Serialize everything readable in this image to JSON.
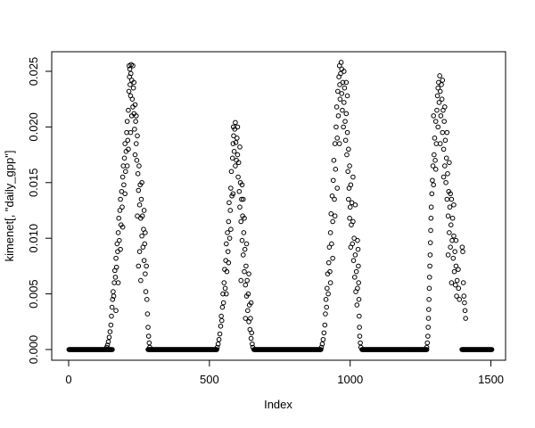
{
  "chart_data": {
    "type": "scatter",
    "title": "",
    "xlabel": "Index",
    "ylabel": "kimenet[, \"daily_gpp\"]",
    "legend": null,
    "grid": false,
    "marker": "open-circle",
    "point_color": "#000000",
    "box_color": "#000000",
    "background": "#ffffff",
    "xlim": [
      -60.2,
      1552.0
    ],
    "ylim": [
      -0.000962,
      0.02676
    ],
    "x_ticks": [
      0,
      500,
      1000,
      1500
    ],
    "x_tick_labels": [
      "0",
      "500",
      "1000",
      "1500"
    ],
    "y_ticks": [
      0.0,
      0.005,
      0.01,
      0.015,
      0.02,
      0.025
    ],
    "y_tick_labels": [
      "0.000",
      "0.005",
      "0.010",
      "0.015",
      "0.020",
      "0.025"
    ],
    "zero_runs": [
      [
        1,
        155
      ],
      [
        282,
        526
      ],
      [
        658,
        896
      ],
      [
        1042,
        1272
      ],
      [
        1397,
        1503
      ]
    ],
    "points": [
      [
        135,
        0.0002
      ],
      [
        138,
        0.0004
      ],
      [
        141,
        0.0007
      ],
      [
        144,
        0.0011
      ],
      [
        147,
        0.0016
      ],
      [
        150,
        0.0022
      ],
      [
        152,
        0.003
      ],
      [
        154,
        0.0038
      ],
      [
        156,
        0.0045
      ],
      [
        158,
        0.0052
      ],
      [
        160,
        0.0048
      ],
      [
        162,
        0.006
      ],
      [
        164,
        0.0071
      ],
      [
        166,
        0.0065
      ],
      [
        168,
        0.0082
      ],
      [
        168,
        0.0035
      ],
      [
        170,
        0.0074
      ],
      [
        172,
        0.0095
      ],
      [
        174,
        0.0088
      ],
      [
        176,
        0.0105
      ],
      [
        176,
        0.006
      ],
      [
        178,
        0.0118
      ],
      [
        180,
        0.0098
      ],
      [
        182,
        0.0125
      ],
      [
        184,
        0.0135
      ],
      [
        184,
        0.009
      ],
      [
        186,
        0.0112
      ],
      [
        188,
        0.0142
      ],
      [
        190,
        0.0128
      ],
      [
        192,
        0.0155
      ],
      [
        192,
        0.011
      ],
      [
        194,
        0.0165
      ],
      [
        196,
        0.0148
      ],
      [
        198,
        0.0172
      ],
      [
        200,
        0.0185
      ],
      [
        200,
        0.014
      ],
      [
        202,
        0.016
      ],
      [
        204,
        0.0178
      ],
      [
        206,
        0.0195
      ],
      [
        208,
        0.0205
      ],
      [
        208,
        0.0165
      ],
      [
        210,
        0.0188
      ],
      [
        212,
        0.0215
      ],
      [
        212,
        0.018
      ],
      [
        214,
        0.0232
      ],
      [
        215,
        0.0255
      ],
      [
        216,
        0.0245
      ],
      [
        217,
        0.0252
      ],
      [
        218,
        0.0238
      ],
      [
        220,
        0.0228
      ],
      [
        220,
        0.0195
      ],
      [
        221,
        0.0248
      ],
      [
        222,
        0.0256
      ],
      [
        224,
        0.0242
      ],
      [
        224,
        0.021
      ],
      [
        226,
        0.0225
      ],
      [
        228,
        0.0218
      ],
      [
        228,
        0.0255
      ],
      [
        230,
        0.0235
      ],
      [
        232,
        0.0212
      ],
      [
        232,
        0.024
      ],
      [
        234,
        0.0198
      ],
      [
        236,
        0.022
      ],
      [
        236,
        0.0175
      ],
      [
        238,
        0.0205
      ],
      [
        240,
        0.0185
      ],
      [
        240,
        0.021
      ],
      [
        242,
        0.017
      ],
      [
        244,
        0.0192
      ],
      [
        244,
        0.012
      ],
      [
        246,
        0.0158
      ],
      [
        248,
        0.0143
      ],
      [
        248,
        0.0075
      ],
      [
        250,
        0.0165
      ],
      [
        252,
        0.013
      ],
      [
        252,
        0.0088
      ],
      [
        254,
        0.0148
      ],
      [
        256,
        0.0118
      ],
      [
        256,
        0.0062
      ],
      [
        258,
        0.0135
      ],
      [
        260,
        0.0102
      ],
      [
        260,
        0.015
      ],
      [
        262,
        0.012
      ],
      [
        264,
        0.0092
      ],
      [
        266,
        0.0108
      ],
      [
        268,
        0.008
      ],
      [
        268,
        0.0125
      ],
      [
        270,
        0.0095
      ],
      [
        272,
        0.0068
      ],
      [
        272,
        0.0105
      ],
      [
        274,
        0.0052
      ],
      [
        276,
        0.0075
      ],
      [
        278,
        0.0045
      ],
      [
        280,
        0.0032
      ],
      [
        282,
        0.002
      ],
      [
        284,
        0.0012
      ],
      [
        286,
        0.0006
      ],
      [
        288,
        0.0002
      ],
      [
        528,
        0.0002
      ],
      [
        531,
        0.0005
      ],
      [
        534,
        0.0009
      ],
      [
        537,
        0.0014
      ],
      [
        540,
        0.0021
      ],
      [
        542,
        0.003
      ],
      [
        544,
        0.0026
      ],
      [
        546,
        0.0038
      ],
      [
        548,
        0.005
      ],
      [
        550,
        0.0042
      ],
      [
        552,
        0.006
      ],
      [
        554,
        0.0072
      ],
      [
        556,
        0.0055
      ],
      [
        558,
        0.008
      ],
      [
        560,
        0.0095
      ],
      [
        560,
        0.005
      ],
      [
        562,
        0.007
      ],
      [
        564,
        0.0105
      ],
      [
        566,
        0.0088
      ],
      [
        568,
        0.0115
      ],
      [
        568,
        0.0078
      ],
      [
        570,
        0.0132
      ],
      [
        572,
        0.01
      ],
      [
        574,
        0.0125
      ],
      [
        576,
        0.0145
      ],
      [
        576,
        0.0108
      ],
      [
        578,
        0.016
      ],
      [
        580,
        0.0138
      ],
      [
        582,
        0.0172
      ],
      [
        584,
        0.0185
      ],
      [
        584,
        0.014
      ],
      [
        585,
        0.02
      ],
      [
        586,
        0.0192
      ],
      [
        588,
        0.0178
      ],
      [
        590,
        0.0198
      ],
      [
        592,
        0.0204
      ],
      [
        592,
        0.0165
      ],
      [
        594,
        0.0186
      ],
      [
        596,
        0.017
      ],
      [
        598,
        0.019
      ],
      [
        600,
        0.0175
      ],
      [
        600,
        0.02
      ],
      [
        602,
        0.0155
      ],
      [
        604,
        0.0168
      ],
      [
        606,
        0.0142
      ],
      [
        608,
        0.0128
      ],
      [
        608,
        0.0182
      ],
      [
        610,
        0.015
      ],
      [
        612,
        0.0115
      ],
      [
        612,
        0.0062
      ],
      [
        614,
        0.0135
      ],
      [
        616,
        0.0098
      ],
      [
        616,
        0.0148
      ],
      [
        618,
        0.012
      ],
      [
        620,
        0.0085
      ],
      [
        620,
        0.0135
      ],
      [
        622,
        0.0105
      ],
      [
        624,
        0.007
      ],
      [
        624,
        0.0118
      ],
      [
        626,
        0.009
      ],
      [
        628,
        0.0058
      ],
      [
        628,
        0.0028
      ],
      [
        630,
        0.0075
      ],
      [
        632,
        0.0048
      ],
      [
        632,
        0.0095
      ],
      [
        634,
        0.0062
      ],
      [
        636,
        0.0035
      ],
      [
        638,
        0.005
      ],
      [
        640,
        0.0025
      ],
      [
        640,
        0.0068
      ],
      [
        642,
        0.004
      ],
      [
        644,
        0.0018
      ],
      [
        646,
        0.0028
      ],
      [
        648,
        0.001
      ],
      [
        648,
        0.0042
      ],
      [
        650,
        0.0015
      ],
      [
        652,
        0.0005
      ],
      [
        654,
        0.0002
      ],
      [
        898,
        0.0002
      ],
      [
        901,
        0.0005
      ],
      [
        904,
        0.0009
      ],
      [
        907,
        0.0015
      ],
      [
        910,
        0.0022
      ],
      [
        912,
        0.0032
      ],
      [
        914,
        0.0045
      ],
      [
        916,
        0.0038
      ],
      [
        918,
        0.0055
      ],
      [
        920,
        0.0068
      ],
      [
        922,
        0.005
      ],
      [
        924,
        0.0078
      ],
      [
        926,
        0.0092
      ],
      [
        928,
        0.007
      ],
      [
        930,
        0.0105
      ],
      [
        930,
        0.006
      ],
      [
        932,
        0.0122
      ],
      [
        934,
        0.0095
      ],
      [
        936,
        0.0138
      ],
      [
        938,
        0.0115
      ],
      [
        938,
        0.0082
      ],
      [
        940,
        0.0152
      ],
      [
        942,
        0.017
      ],
      [
        944,
        0.0135
      ],
      [
        946,
        0.0185
      ],
      [
        946,
        0.012
      ],
      [
        948,
        0.0162
      ],
      [
        950,
        0.02
      ],
      [
        952,
        0.0218
      ],
      [
        954,
        0.019
      ],
      [
        954,
        0.0145
      ],
      [
        956,
        0.0232
      ],
      [
        958,
        0.021
      ],
      [
        960,
        0.0245
      ],
      [
        962,
        0.0255
      ],
      [
        962,
        0.0185
      ],
      [
        963,
        0.0238
      ],
      [
        964,
        0.0225
      ],
      [
        966,
        0.0248
      ],
      [
        968,
        0.0258
      ],
      [
        970,
        0.023
      ],
      [
        970,
        0.0252
      ],
      [
        972,
        0.0215
      ],
      [
        974,
        0.024
      ],
      [
        976,
        0.02
      ],
      [
        978,
        0.0222
      ],
      [
        978,
        0.025
      ],
      [
        980,
        0.0235
      ],
      [
        982,
        0.0205
      ],
      [
        984,
        0.0188
      ],
      [
        986,
        0.0212
      ],
      [
        986,
        0.024
      ],
      [
        988,
        0.0175
      ],
      [
        990,
        0.0195
      ],
      [
        990,
        0.0228
      ],
      [
        992,
        0.016
      ],
      [
        994,
        0.018
      ],
      [
        994,
        0.0135
      ],
      [
        996,
        0.0145
      ],
      [
        998,
        0.0165
      ],
      [
        998,
        0.0118
      ],
      [
        1000,
        0.0128
      ],
      [
        1002,
        0.0148
      ],
      [
        1002,
        0.0092
      ],
      [
        1004,
        0.0112
      ],
      [
        1006,
        0.0132
      ],
      [
        1008,
        0.0095
      ],
      [
        1010,
        0.0115
      ],
      [
        1010,
        0.0155
      ],
      [
        1012,
        0.008
      ],
      [
        1014,
        0.01
      ],
      [
        1016,
        0.0065
      ],
      [
        1018,
        0.0085
      ],
      [
        1018,
        0.013
      ],
      [
        1020,
        0.0052
      ],
      [
        1022,
        0.007
      ],
      [
        1024,
        0.004
      ],
      [
        1026,
        0.0055
      ],
      [
        1026,
        0.0098
      ],
      [
        1028,
        0.009
      ],
      [
        1029,
        0.0075
      ],
      [
        1030,
        0.006
      ],
      [
        1031,
        0.0045
      ],
      [
        1032,
        0.003
      ],
      [
        1033,
        0.002
      ],
      [
        1034,
        0.0012
      ],
      [
        1036,
        0.0006
      ],
      [
        1038,
        0.0002
      ],
      [
        1272,
        0.0002
      ],
      [
        1274,
        0.0006
      ],
      [
        1276,
        0.0012
      ],
      [
        1277,
        0.002
      ],
      [
        1278,
        0.0028
      ],
      [
        1279,
        0.0036
      ],
      [
        1280,
        0.0045
      ],
      [
        1281,
        0.0055
      ],
      [
        1282,
        0.0065
      ],
      [
        1283,
        0.0075
      ],
      [
        1284,
        0.0085
      ],
      [
        1285,
        0.0096
      ],
      [
        1286,
        0.0107
      ],
      [
        1287,
        0.0118
      ],
      [
        1288,
        0.0128
      ],
      [
        1290,
        0.014
      ],
      [
        1292,
        0.0152
      ],
      [
        1294,
        0.0165
      ],
      [
        1296,
        0.0148
      ],
      [
        1296,
        0.021
      ],
      [
        1298,
        0.0175
      ],
      [
        1300,
        0.019
      ],
      [
        1302,
        0.017
      ],
      [
        1304,
        0.0205
      ],
      [
        1304,
        0.0162
      ],
      [
        1306,
        0.0185
      ],
      [
        1308,
        0.0215
      ],
      [
        1310,
        0.0228
      ],
      [
        1312,
        0.02
      ],
      [
        1312,
        0.0235
      ],
      [
        1314,
        0.024
      ],
      [
        1316,
        0.0222
      ],
      [
        1318,
        0.0246
      ],
      [
        1320,
        0.0232
      ],
      [
        1320,
        0.0185
      ],
      [
        1322,
        0.021
      ],
      [
        1324,
        0.0238
      ],
      [
        1326,
        0.0225
      ],
      [
        1328,
        0.0195
      ],
      [
        1328,
        0.0242
      ],
      [
        1330,
        0.0215
      ],
      [
        1332,
        0.018
      ],
      [
        1332,
        0.0155
      ],
      [
        1334,
        0.0205
      ],
      [
        1336,
        0.0165
      ],
      [
        1336,
        0.0218
      ],
      [
        1338,
        0.0188
      ],
      [
        1340,
        0.015
      ],
      [
        1342,
        0.0172
      ],
      [
        1344,
        0.0135
      ],
      [
        1344,
        0.0195
      ],
      [
        1346,
        0.0158
      ],
      [
        1348,
        0.012
      ],
      [
        1348,
        0.0085
      ],
      [
        1350,
        0.0142
      ],
      [
        1352,
        0.0105
      ],
      [
        1352,
        0.0168
      ],
      [
        1354,
        0.0128
      ],
      [
        1356,
        0.0092
      ],
      [
        1356,
        0.014
      ],
      [
        1358,
        0.0112
      ],
      [
        1360,
        0.0135
      ],
      [
        1360,
        0.006
      ],
      [
        1362,
        0.0098
      ],
      [
        1364,
        0.0118
      ],
      [
        1366,
        0.0082
      ],
      [
        1368,
        0.0102
      ],
      [
        1368,
        0.013
      ],
      [
        1370,
        0.007
      ],
      [
        1372,
        0.0088
      ],
      [
        1374,
        0.0058
      ],
      [
        1376,
        0.0075
      ],
      [
        1376,
        0.0098
      ],
      [
        1378,
        0.0048
      ],
      [
        1380,
        0.0062
      ],
      [
        1384,
        0.0072
      ],
      [
        1385,
        0.0055
      ],
      [
        1388,
        0.0045
      ],
      [
        1398,
        0.0092
      ],
      [
        1400,
        0.0088
      ],
      [
        1402,
        0.006
      ],
      [
        1404,
        0.0048
      ],
      [
        1406,
        0.0042
      ],
      [
        1408,
        0.0035
      ],
      [
        1410,
        0.0028
      ]
    ]
  }
}
